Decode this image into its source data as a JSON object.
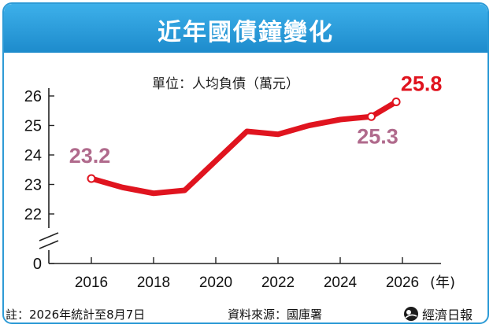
{
  "title": "近年國債鐘變化",
  "unit_label": "單位：人均負債（萬元）",
  "footer": {
    "note": "註：2026年統計至8月7日",
    "source": "資料來源：國庫署",
    "brand": "經濟日報"
  },
  "colors": {
    "title_bar": "#2e9bd6",
    "line": "#e0141f",
    "label_first": "#b06a8c",
    "label_last": "#e0141f"
  },
  "chart_data": {
    "type": "line",
    "x": [
      2016,
      2017,
      2018,
      2019,
      2020,
      2021,
      2022,
      2023,
      2024,
      2025,
      2025.8
    ],
    "y": [
      23.2,
      22.9,
      22.7,
      22.8,
      23.8,
      24.8,
      24.7,
      25.0,
      25.2,
      25.3,
      25.8
    ],
    "x_ticks": [
      "2016",
      "2018",
      "2020",
      "2022",
      "2024",
      "2026"
    ],
    "x_tick_values": [
      2016,
      2018,
      2020,
      2022,
      2024,
      2026
    ],
    "x_unit": "(年)",
    "y_ticks": [
      "0",
      "22",
      "23",
      "24",
      "25",
      "26"
    ],
    "y_tick_values": [
      0,
      22,
      23,
      24,
      25,
      26
    ],
    "y_axis_break": true,
    "ylim": [
      22,
      26
    ],
    "xlim": [
      2015,
      2027
    ],
    "annotations": [
      {
        "text": "23.2",
        "x": 2016,
        "y": 23.2,
        "style": "first"
      },
      {
        "text": "25.3",
        "x": 2025,
        "y": 25.3,
        "style": "first"
      },
      {
        "text": "25.8",
        "x": 2025.8,
        "y": 25.8,
        "style": "last"
      }
    ]
  }
}
